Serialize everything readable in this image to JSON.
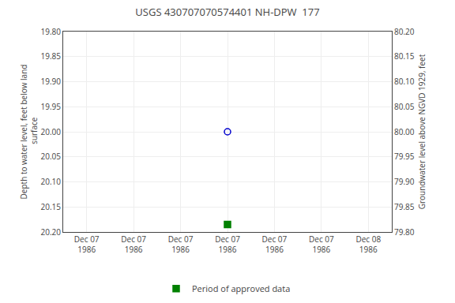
{
  "chart_data": {
    "type": "scatter",
    "title": "USGS 430707070574401 NH-DPW  177",
    "categories": [
      "Dec 07\n1986",
      "Dec 07\n1986",
      "Dec 07\n1986",
      "Dec 07\n1986",
      "Dec 07\n1986",
      "Dec 07\n1986",
      "Dec 08\n1986"
    ],
    "y_label": "Depth to water level, feet below land\n surface",
    "y2_label": "Groundwater level above NGVD 1929, feet",
    "series": [
      {
        "color": "#0000cc",
        "marker": "circle-open",
        "values": [
          null,
          null,
          null,
          20.0,
          null,
          null,
          null
        ]
      },
      {
        "name": "Period of approved data",
        "color": "#008000",
        "marker": "square",
        "values": [
          null,
          null,
          null,
          20.185,
          null,
          null,
          null
        ]
      }
    ],
    "ylim": [
      20.2,
      19.8
    ],
    "yticks": [
      {
        "value": 19.8,
        "label": "19.80"
      },
      {
        "value": 19.85,
        "label": "19.85"
      },
      {
        "value": 19.9,
        "label": "19.90"
      },
      {
        "value": 19.95,
        "label": "19.95"
      },
      {
        "value": 20.0,
        "label": "20.00"
      },
      {
        "value": 20.05,
        "label": "20.05"
      },
      {
        "value": 20.1,
        "label": "20.10"
      },
      {
        "value": 20.15,
        "label": "20.15"
      },
      {
        "value": 20.2,
        "label": "20.20"
      }
    ],
    "y2lim": [
      79.8,
      80.2
    ],
    "y2ticks": [
      {
        "value": 80.2,
        "label": "80.20"
      },
      {
        "value": 80.15,
        "label": "80.15"
      },
      {
        "value": 80.1,
        "label": "80.10"
      },
      {
        "value": 80.05,
        "label": "80.05"
      },
      {
        "value": 80.0,
        "label": "80.00"
      },
      {
        "value": 79.95,
        "label": "79.95"
      },
      {
        "value": 79.9,
        "label": "79.90"
      },
      {
        "value": 79.85,
        "label": "79.85"
      },
      {
        "value": 79.8,
        "label": "79.80"
      }
    ],
    "grid": true,
    "legend": "bottom"
  }
}
